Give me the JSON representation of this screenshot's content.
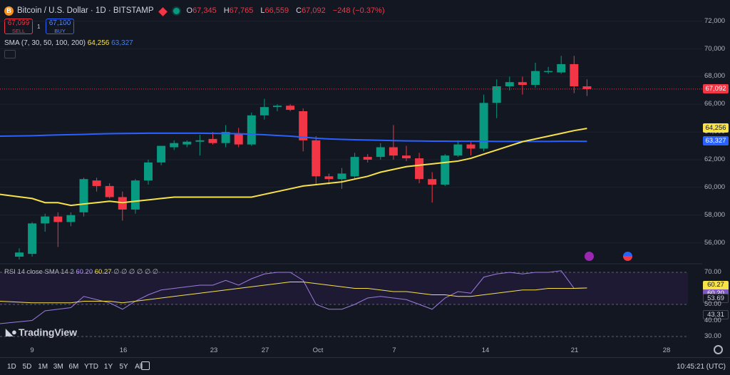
{
  "header": {
    "symbol_icon": "B",
    "title": "Bitcoin / U.S. Dollar · 1D · BITSTAMP",
    "ohlc": [
      {
        "k": "O",
        "v": "67,345"
      },
      {
        "k": "H",
        "v": "67,765"
      },
      {
        "k": "L",
        "v": "66,559"
      },
      {
        "k": "C",
        "v": "67,092"
      },
      {
        "k": "",
        "v": "−248 (−0.37%)"
      }
    ]
  },
  "trade": {
    "sell_price": "67,099",
    "sell_label": "SELL",
    "spread": "1",
    "buy_price": "67,100",
    "buy_label": "BUY"
  },
  "sma_legend": {
    "label": "SMA (7, 30, 50, 100, 200)",
    "v1": "64,256",
    "v2": "63,327"
  },
  "rsi_legend": {
    "label": "RSI 14 close SMA 14 2",
    "v1": "60.20",
    "v2": "60.27",
    "rest": "∅ ∅ ∅ ∅ ∅ ∅"
  },
  "price_axis": [
    "72,000",
    "70,000",
    "68,000",
    "66,000",
    "64,000",
    "62,000",
    "60,000",
    "58,000",
    "56,000"
  ],
  "price_tags": {
    "last": "67,092",
    "sma_yellow": "64,256",
    "sma_blue": "63,327"
  },
  "rsi_axis": [
    "70.00",
    "60.27",
    "60.20",
    "53.69",
    "50.00",
    "43.31",
    "40.00",
    "30.00"
  ],
  "x_axis": [
    "9",
    "16",
    "23",
    "27",
    "Oct",
    "7",
    "14",
    "21",
    "28"
  ],
  "timeframes": [
    "1D",
    "5D",
    "1M",
    "3M",
    "6M",
    "YTD",
    "1Y",
    "5Y",
    "All"
  ],
  "clock": "10:45:21 (UTC)",
  "logo": "TradingView",
  "colors": {
    "up": "#089981",
    "down": "#f23645",
    "sma_yellow": "#f7e24a",
    "sma_blue": "#2962ff",
    "rsi": "#9c7ce0"
  },
  "chart_data": {
    "type": "candlestick",
    "ylim": [
      55000,
      72500
    ],
    "candles": [
      {
        "o": 55000,
        "h": 55600,
        "l": 54800,
        "c": 55300
      },
      {
        "o": 55200,
        "h": 57500,
        "l": 55000,
        "c": 57400
      },
      {
        "o": 57400,
        "h": 58100,
        "l": 56800,
        "c": 57900
      },
      {
        "o": 57900,
        "h": 58200,
        "l": 55700,
        "c": 57500
      },
      {
        "o": 57500,
        "h": 58200,
        "l": 57200,
        "c": 58000
      },
      {
        "o": 58200,
        "h": 60700,
        "l": 57900,
        "c": 60600
      },
      {
        "o": 60500,
        "h": 60700,
        "l": 59700,
        "c": 60100
      },
      {
        "o": 60100,
        "h": 60300,
        "l": 59200,
        "c": 59300
      },
      {
        "o": 59300,
        "h": 59700,
        "l": 57600,
        "c": 58400
      },
      {
        "o": 58400,
        "h": 60600,
        "l": 58100,
        "c": 60500
      },
      {
        "o": 60500,
        "h": 62000,
        "l": 60200,
        "c": 61800
      },
      {
        "o": 61800,
        "h": 63000,
        "l": 61600,
        "c": 63000
      },
      {
        "o": 62900,
        "h": 63400,
        "l": 62700,
        "c": 63200
      },
      {
        "o": 63100,
        "h": 63400,
        "l": 62900,
        "c": 63300
      },
      {
        "o": 63300,
        "h": 63800,
        "l": 62300,
        "c": 63400
      },
      {
        "o": 63500,
        "h": 64000,
        "l": 63100,
        "c": 63200
      },
      {
        "o": 63200,
        "h": 64500,
        "l": 62900,
        "c": 64000
      },
      {
        "o": 63900,
        "h": 64300,
        "l": 62900,
        "c": 63100
      },
      {
        "o": 63100,
        "h": 65400,
        "l": 63000,
        "c": 65200
      },
      {
        "o": 65200,
        "h": 66400,
        "l": 64900,
        "c": 65800
      },
      {
        "o": 65800,
        "h": 66000,
        "l": 65500,
        "c": 65900
      },
      {
        "o": 65900,
        "h": 66000,
        "l": 65500,
        "c": 65600
      },
      {
        "o": 65500,
        "h": 65700,
        "l": 62600,
        "c": 63400
      },
      {
        "o": 63400,
        "h": 63700,
        "l": 60200,
        "c": 60800
      },
      {
        "o": 60800,
        "h": 61000,
        "l": 60200,
        "c": 60600
      },
      {
        "o": 60600,
        "h": 61400,
        "l": 59900,
        "c": 61000
      },
      {
        "o": 60800,
        "h": 62500,
        "l": 60600,
        "c": 62200
      },
      {
        "o": 62200,
        "h": 62400,
        "l": 61800,
        "c": 62000
      },
      {
        "o": 62200,
        "h": 63200,
        "l": 62000,
        "c": 62900
      },
      {
        "o": 62900,
        "h": 64500,
        "l": 62000,
        "c": 62300
      },
      {
        "o": 62300,
        "h": 63000,
        "l": 61900,
        "c": 62100
      },
      {
        "o": 62100,
        "h": 62500,
        "l": 60300,
        "c": 60600
      },
      {
        "o": 60600,
        "h": 61100,
        "l": 58900,
        "c": 60200
      },
      {
        "o": 60200,
        "h": 62400,
        "l": 60100,
        "c": 62300
      },
      {
        "o": 62300,
        "h": 63400,
        "l": 62200,
        "c": 63100
      },
      {
        "o": 63100,
        "h": 63300,
        "l": 62300,
        "c": 62800
      },
      {
        "o": 62800,
        "h": 66700,
        "l": 62600,
        "c": 66100
      },
      {
        "o": 66100,
        "h": 67800,
        "l": 65000,
        "c": 67300
      },
      {
        "o": 67300,
        "h": 68000,
        "l": 67000,
        "c": 67600
      },
      {
        "o": 67600,
        "h": 68000,
        "l": 66700,
        "c": 67400
      },
      {
        "o": 67400,
        "h": 69000,
        "l": 67200,
        "c": 68400
      },
      {
        "o": 68400,
        "h": 68700,
        "l": 68200,
        "c": 68400
      },
      {
        "o": 68300,
        "h": 69500,
        "l": 68200,
        "c": 68900
      },
      {
        "o": 68900,
        "h": 69500,
        "l": 66800,
        "c": 67300
      },
      {
        "o": 67300,
        "h": 67800,
        "l": 66600,
        "c": 67100
      }
    ],
    "sma_yellow": [
      59500,
      59200,
      58900,
      58900,
      58700,
      58800,
      58900,
      59000,
      58900,
      59000,
      59100,
      59200,
      59300,
      59300,
      59300,
      59300,
      59300,
      59300,
      59300,
      59500,
      59700,
      59900,
      60100,
      60200,
      60300,
      60400,
      60600,
      60800,
      61100,
      61300,
      61500,
      61600,
      61700,
      61800,
      61900,
      62100,
      62400,
      62700,
      63000,
      63300,
      63500,
      63700,
      63900,
      64100,
      64256
    ],
    "sma_blue": [
      63700,
      63730,
      63760,
      63790,
      63810,
      63830,
      63860,
      63880,
      63890,
      63900,
      63910,
      63910,
      63910,
      63910,
      63910,
      63900,
      63890,
      63870,
      63840,
      63800,
      63750,
      63700,
      63630,
      63550,
      63500,
      63470,
      63440,
      63420,
      63400,
      63380,
      63360,
      63350,
      63340,
      63340,
      63330,
      63330,
      63330,
      63320,
      63320,
      63320,
      63320,
      63320,
      63330,
      63330,
      63327
    ],
    "rsi": [
      38,
      40,
      46,
      47,
      48,
      55,
      53,
      51,
      47,
      52,
      56,
      59,
      60,
      61,
      62,
      62,
      65,
      62,
      66,
      69,
      70,
      70,
      65,
      50,
      47,
      47,
      50,
      54,
      55,
      54,
      53,
      50,
      47,
      54,
      58,
      57,
      67,
      69,
      70,
      69,
      70,
      70,
      71,
      60,
      60.2
    ],
    "rsi_sma": [
      52,
      51,
      51,
      51,
      51,
      52,
      52,
      52,
      51,
      52,
      53,
      54,
      55,
      56,
      57,
      58,
      59,
      60,
      61,
      62,
      63,
      64,
      64,
      63,
      62,
      61,
      60,
      60,
      59,
      58,
      58,
      57,
      56,
      56,
      55,
      55,
      56,
      57,
      58,
      59,
      59,
      60,
      60,
      60,
      60.27
    ],
    "rsi_ylim": [
      30,
      70
    ],
    "rsi_bands": [
      70,
      50
    ]
  }
}
